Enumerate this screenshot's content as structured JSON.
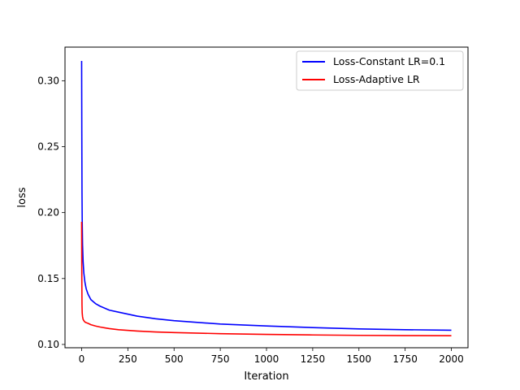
{
  "chart_data": {
    "type": "line",
    "title": "",
    "xlabel": "Iteration",
    "ylabel": "loss",
    "xlim": [
      -90,
      2090
    ],
    "ylim": [
      0.0975,
      0.3255
    ],
    "xticks": [
      0,
      250,
      500,
      750,
      1000,
      1250,
      1500,
      1750,
      2000
    ],
    "xtick_labels": [
      "0",
      "250",
      "500",
      "750",
      "1000",
      "1250",
      "1500",
      "1750",
      "2000"
    ],
    "yticks": [
      0.1,
      0.15,
      0.2,
      0.25,
      0.3
    ],
    "ytick_labels": [
      "0.10",
      "0.15",
      "0.20",
      "0.25",
      "0.30"
    ],
    "grid": false,
    "legend_position": "upper-right",
    "series": [
      {
        "name": "Loss-Constant LR=0.1",
        "color": "#0000ff",
        "x": [
          0,
          1,
          2,
          3,
          5,
          8,
          12,
          18,
          25,
          35,
          50,
          75,
          100,
          150,
          200,
          300,
          400,
          500,
          750,
          1000,
          1250,
          1500,
          1750,
          2000
        ],
        "y": [
          0.315,
          0.26,
          0.215,
          0.195,
          0.176,
          0.163,
          0.154,
          0.147,
          0.142,
          0.138,
          0.134,
          0.131,
          0.129,
          0.126,
          0.1245,
          0.1215,
          0.1195,
          0.118,
          0.1155,
          0.114,
          0.1128,
          0.1118,
          0.1112,
          0.1108
        ]
      },
      {
        "name": "Loss-Adaptive LR",
        "color": "#ff0000",
        "x": [
          0,
          1,
          2,
          3,
          5,
          8,
          12,
          18,
          25,
          35,
          50,
          75,
          100,
          150,
          200,
          300,
          400,
          500,
          750,
          1000,
          1250,
          1500,
          1750,
          2000
        ],
        "y": [
          0.193,
          0.15,
          0.13,
          0.124,
          0.121,
          0.119,
          0.118,
          0.117,
          0.1165,
          0.116,
          0.115,
          0.114,
          0.1132,
          0.112,
          0.1112,
          0.1102,
          0.1095,
          0.109,
          0.1082,
          0.1076,
          0.1072,
          0.1069,
          0.1067,
          0.1066
        ]
      }
    ]
  }
}
